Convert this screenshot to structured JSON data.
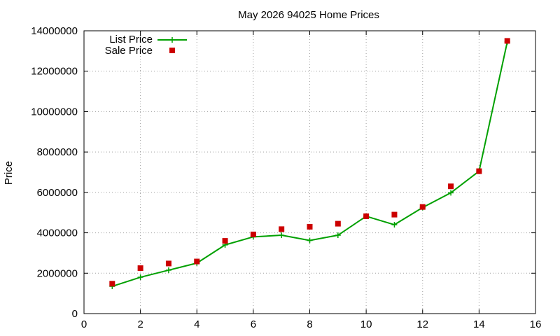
{
  "colors": {
    "list_price": "#00a000",
    "sale_price": "#cc0000",
    "grid": "#a0a0a0",
    "axis": "#000000",
    "background": "#ffffff"
  },
  "chart_data": {
    "type": "line",
    "title": "May 2026 94025 Home Prices",
    "xlabel": "",
    "ylabel": "Price",
    "xlim": [
      0,
      16
    ],
    "ylim": [
      0,
      14000000
    ],
    "x_ticks": [
      0,
      2,
      4,
      6,
      8,
      10,
      12,
      14,
      16
    ],
    "y_ticks": [
      0,
      2000000,
      4000000,
      6000000,
      8000000,
      10000000,
      12000000,
      14000000
    ],
    "x_tick_labels": [
      "0",
      "2",
      "4",
      "6",
      "8",
      "10",
      "12",
      "14",
      "16"
    ],
    "y_tick_labels": [
      "0",
      "2000000",
      "4000000",
      "6000000",
      "8000000",
      "10000000",
      "12000000",
      "14000000"
    ],
    "grid": true,
    "legend_position": "top-left",
    "x": [
      1,
      2,
      3,
      4,
      5,
      6,
      7,
      8,
      9,
      10,
      11,
      12,
      13,
      14,
      15
    ],
    "series": [
      {
        "name": "List Price",
        "style": "line-with-plus-markers",
        "color": "#00a000",
        "values": [
          1350000,
          1800000,
          2150000,
          2500000,
          3400000,
          3800000,
          3880000,
          3620000,
          3880000,
          4820000,
          4400000,
          5250000,
          5980000,
          7050000,
          13450000
        ]
      },
      {
        "name": "Sale Price",
        "style": "square-markers",
        "color": "#cc0000",
        "values": [
          1480000,
          2250000,
          2480000,
          2580000,
          3600000,
          3920000,
          4180000,
          4300000,
          4450000,
          4820000,
          4900000,
          5280000,
          6300000,
          7050000,
          13500000
        ]
      }
    ]
  }
}
